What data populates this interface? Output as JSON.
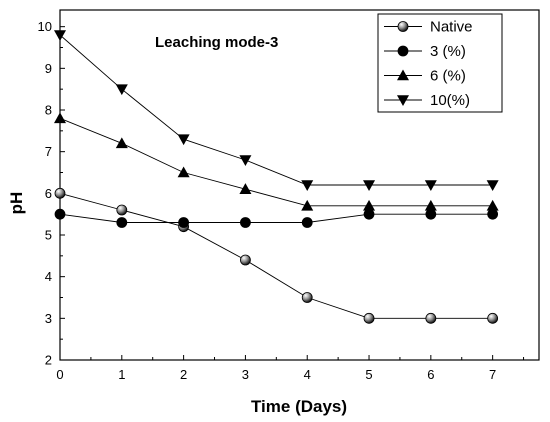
{
  "chart_data": {
    "type": "line",
    "title": "",
    "annotation": "Leaching mode-3",
    "xlabel": "Time (Days)",
    "ylabel": "pH",
    "xlim": [
      0,
      7.75
    ],
    "ylim": [
      2,
      10.4
    ],
    "xticks": [
      0,
      1,
      2,
      3,
      4,
      5,
      6,
      7
    ],
    "yticks": [
      2,
      3,
      4,
      5,
      6,
      7,
      8,
      9,
      10
    ],
    "x": [
      0,
      1,
      2,
      3,
      4,
      5,
      6,
      7
    ],
    "grid": false,
    "legend_position": "top-right",
    "series": [
      {
        "name": "Native",
        "marker": "half-circle",
        "values": [
          6.0,
          5.6,
          5.2,
          4.4,
          3.5,
          3.0,
          3.0,
          3.0
        ]
      },
      {
        "name": "3 (%)",
        "marker": "circle",
        "values": [
          5.5,
          5.3,
          5.3,
          5.3,
          5.3,
          5.5,
          5.5,
          5.5
        ]
      },
      {
        "name": "6 (%)",
        "marker": "triangle-up",
        "values": [
          7.8,
          7.2,
          6.5,
          6.1,
          5.7,
          5.7,
          5.7,
          5.7
        ]
      },
      {
        "name": "10(%)",
        "marker": "triangle-down",
        "values": [
          9.8,
          8.5,
          7.3,
          6.8,
          6.2,
          6.2,
          6.2,
          6.2
        ]
      }
    ]
  }
}
